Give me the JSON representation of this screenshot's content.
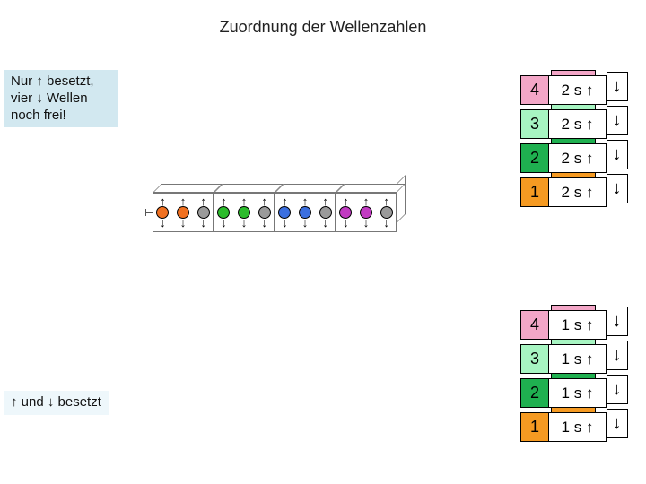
{
  "title": "Zuordnung der Wellenzahlen",
  "note_top_l1": "Nur ↑ besetzt,",
  "note_top_l2": "vier ↓ Wellen",
  "note_top_l3": "noch frei!",
  "note_bottom": "↑ und ↓ besetzt",
  "tables": {
    "upper": {
      "rows": [
        {
          "n": "4",
          "mid": "2 s ↑",
          "arrow": "↓",
          "bg": "#f3a6c7",
          "tab": "#f3a6c7"
        },
        {
          "n": "3",
          "mid": "2 s ↑",
          "arrow": "↓",
          "bg": "#a7f5c2",
          "tab": "#a7f5c2"
        },
        {
          "n": "2",
          "mid": "2 s ↑",
          "arrow": "↓",
          "bg": "#1fb050",
          "tab": "#1fb050"
        },
        {
          "n": "1",
          "mid": "2 s ↑",
          "arrow": "↓",
          "bg": "#f59a22",
          "tab": "#f59a22"
        }
      ]
    },
    "lower": {
      "rows": [
        {
          "n": "4",
          "mid": "1 s ↑",
          "arrow": "↓",
          "bg": "#f3a6c7",
          "tab": "#f3a6c7"
        },
        {
          "n": "3",
          "mid": "1 s ↑",
          "arrow": "↓",
          "bg": "#a7f5c2",
          "tab": "#a7f5c2"
        },
        {
          "n": "2",
          "mid": "1 s ↑",
          "arrow": "↓",
          "bg": "#1fb050",
          "tab": "#1fb050"
        },
        {
          "n": "1",
          "mid": "1 s ↑",
          "arrow": "↓",
          "bg": "#f59a22",
          "tab": "#f59a22"
        }
      ]
    }
  },
  "strip": {
    "cells": [
      {
        "balls": [
          {
            "c": "#f07020"
          },
          {
            "c": "#f07020"
          },
          {
            "c": "#9a9a9a"
          }
        ]
      },
      {
        "balls": [
          {
            "c": "#2bbb2b"
          },
          {
            "c": "#2bbb2b"
          },
          {
            "c": "#9a9a9a"
          }
        ]
      },
      {
        "balls": [
          {
            "c": "#3b6fe0"
          },
          {
            "c": "#3b6fe0"
          },
          {
            "c": "#9a9a9a"
          }
        ]
      },
      {
        "balls": [
          {
            "c": "#c23bc2"
          },
          {
            "c": "#c23bc2"
          },
          {
            "c": "#9a9a9a"
          }
        ]
      }
    ]
  }
}
